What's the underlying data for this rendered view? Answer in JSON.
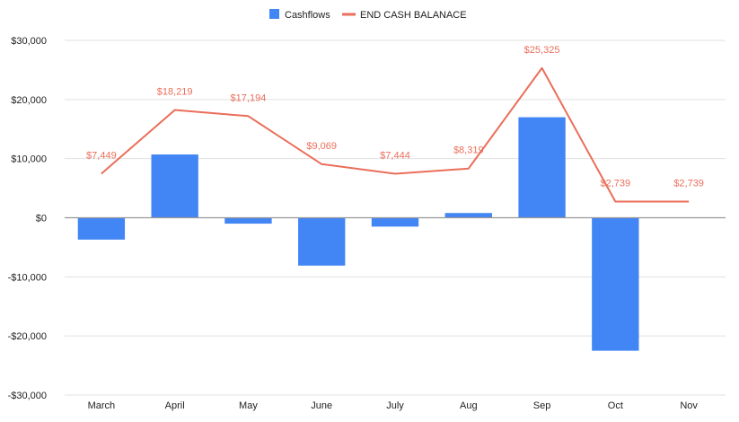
{
  "chart_data": {
    "type": "bar",
    "title": "",
    "xlabel": "",
    "ylabel": "",
    "categories": [
      "March",
      "April",
      "May",
      "June",
      "July",
      "Aug",
      "Sep",
      "Oct",
      "Nov"
    ],
    "ylim": [
      -30000,
      30000
    ],
    "yticks": [
      30000,
      20000,
      10000,
      0,
      -10000,
      -20000,
      -30000
    ],
    "ytick_labels": [
      "$30,000",
      "$20,000",
      "$10,000",
      "$0",
      "-$10,000",
      "-$20,000",
      "-$30,000"
    ],
    "grid": true,
    "legend_position": "top",
    "series": [
      {
        "name": "Cashflows",
        "type": "bar",
        "color": "#4285f4",
        "values": [
          -3700,
          10700,
          -1000,
          -8100,
          -1500,
          800,
          17000,
          -22500,
          0
        ]
      },
      {
        "name": "END CASH BALANACE",
        "type": "line",
        "color": "#ea6e5a",
        "values": [
          7449,
          18219,
          17194,
          9069,
          7444,
          8319,
          25325,
          2739,
          2739
        ],
        "labels": [
          "$7,449",
          "$18,219",
          "$17,194",
          "$9,069",
          "$7,444",
          "$8,319",
          "$25,325",
          "$2,739",
          "$2,739"
        ]
      }
    ]
  }
}
